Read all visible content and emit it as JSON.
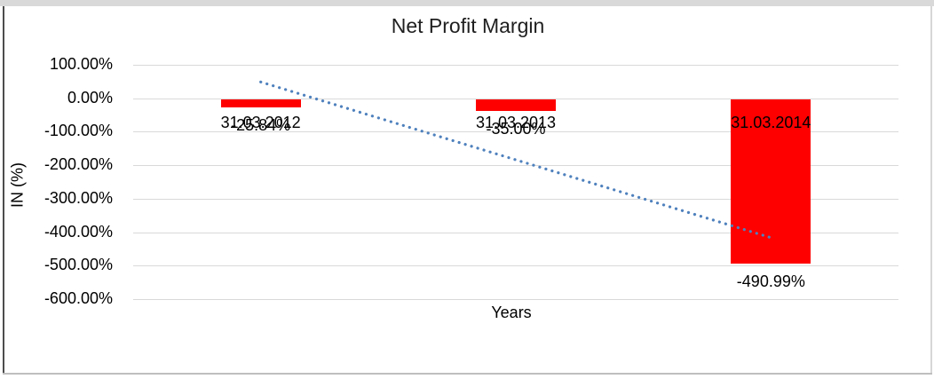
{
  "chart_data": {
    "type": "bar",
    "title": "Net Profit Margin",
    "xlabel": "Years",
    "ylabel": "IN (%)",
    "categories": [
      "31.03.2012",
      "31.03.2013",
      "31.03.2014"
    ],
    "values": [
      -25.84,
      -35.0,
      -490.99
    ],
    "value_labels": [
      "-25.84%",
      "-35.00%",
      "-490.99%"
    ],
    "yticks": [
      100,
      0,
      -100,
      -200,
      -300,
      -400,
      -500,
      -600
    ],
    "ytick_labels": [
      "100.00%",
      "0.00%",
      "-100.00%",
      "-200.00%",
      "-300.00%",
      "-400.00%",
      "-500.00%",
      "-600.00%"
    ],
    "ylim": [
      -600,
      100
    ],
    "grid": true,
    "legend": false,
    "bar_color": "#ff0000",
    "gridline_color": "#d9d9d9",
    "label_color": "#000000",
    "trendline": {
      "type": "linear",
      "style": "dotted",
      "color": "#4f81bd",
      "start_value": 48.7,
      "end_value": -416.5
    }
  }
}
